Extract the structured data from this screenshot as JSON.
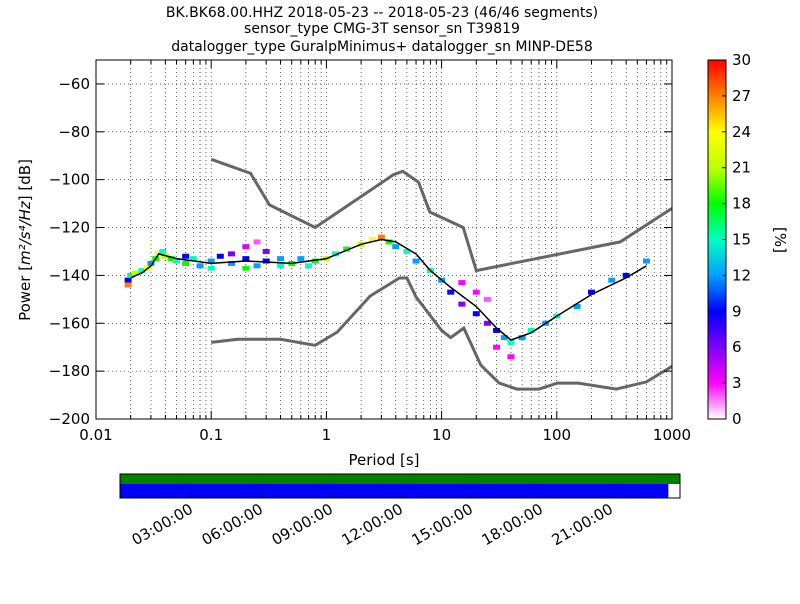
{
  "chart_data": {
    "type": "heatmap",
    "title_lines": [
      "BK.BK68.00.HHZ   2018-05-23 -- 2018-05-23  (46/46 segments)",
      "sensor_type CMG-3T sensor_sn T39819",
      "datalogger_type GuralpMinimus+ datalogger_sn MINP-DE58"
    ],
    "xlabel": "Period [s]",
    "ylabel_prefix": "Power [",
    "ylabel_unit": "m²/s⁴/Hz",
    "ylabel_suffix": "] [dB]",
    "xscale": "log",
    "xlim": [
      0.01,
      1000
    ],
    "ylim": [
      -200,
      -50
    ],
    "x_ticks": [
      0.01,
      0.1,
      1,
      10,
      100,
      1000
    ],
    "x_tick_labels": [
      "0.01",
      "0.1",
      "1",
      "10",
      "100",
      "1000"
    ],
    "y_ticks": [
      -200,
      -180,
      -160,
      -140,
      -120,
      -100,
      -80,
      -60
    ],
    "y_tick_labels": [
      "−200",
      "−180",
      "−160",
      "−140",
      "−120",
      "−100",
      "−80",
      "−60"
    ],
    "grid": "dotted",
    "colorbar": {
      "label": "[%]",
      "range": [
        0,
        30
      ],
      "ticks": [
        0,
        3,
        6,
        9,
        12,
        15,
        18,
        21,
        24,
        27,
        30
      ],
      "tick_labels": [
        "0",
        "3",
        "6",
        "9",
        "12",
        "15",
        "18",
        "21",
        "24",
        "27",
        "30"
      ],
      "colormap": [
        "#ffffff",
        "#ff00ff",
        "#8000ff",
        "#0000ff",
        "#00a0ff",
        "#00ffc0",
        "#00ff00",
        "#c0ff00",
        "#ffff00",
        "#ff8000",
        "#ff0000"
      ]
    },
    "model_color": "#666666",
    "high_noise_model": [
      [
        0.1,
        -91.5
      ],
      [
        0.22,
        -97.4
      ],
      [
        0.32,
        -110.5
      ],
      [
        0.8,
        -120
      ],
      [
        3.8,
        -98
      ],
      [
        4.6,
        -96.5
      ],
      [
        6.3,
        -101
      ],
      [
        7.9,
        -113.5
      ],
      [
        15.4,
        -120
      ],
      [
        20,
        -138
      ],
      [
        354.8,
        -126
      ],
      [
        1000,
        -112
      ]
    ],
    "low_noise_model": [
      [
        0.1,
        -168
      ],
      [
        0.17,
        -166.7
      ],
      [
        0.4,
        -166.7
      ],
      [
        0.8,
        -169.2
      ],
      [
        1.24,
        -163.7
      ],
      [
        2.4,
        -148.6
      ],
      [
        4.3,
        -141.1
      ],
      [
        5,
        -141.1
      ],
      [
        6,
        -149
      ],
      [
        10,
        -163
      ],
      [
        12,
        -166
      ],
      [
        15.6,
        -162
      ],
      [
        21.9,
        -177.5
      ],
      [
        31.6,
        -185
      ],
      [
        45,
        -187.5
      ],
      [
        70,
        -187.5
      ],
      [
        101,
        -185
      ],
      [
        154,
        -185
      ],
      [
        328,
        -187.5
      ],
      [
        600,
        -184.5
      ],
      [
        1000,
        -178
      ]
    ],
    "mode_line": [
      [
        0.02,
        -141
      ],
      [
        0.025,
        -139
      ],
      [
        0.03,
        -136
      ],
      [
        0.035,
        -131
      ],
      [
        0.05,
        -133
      ],
      [
        0.1,
        -135
      ],
      [
        0.2,
        -134
      ],
      [
        0.5,
        -135
      ],
      [
        1,
        -133
      ],
      [
        2,
        -127
      ],
      [
        3,
        -125
      ],
      [
        4,
        -126
      ],
      [
        6,
        -131
      ],
      [
        8,
        -138
      ],
      [
        12,
        -145
      ],
      [
        20,
        -153
      ],
      [
        30,
        -162
      ],
      [
        40,
        -167
      ],
      [
        60,
        -164
      ],
      [
        100,
        -157
      ],
      [
        200,
        -148
      ],
      [
        400,
        -141
      ],
      [
        600,
        -136
      ]
    ],
    "psd_density": [
      [
        0.019,
        -142,
        9
      ],
      [
        0.019,
        -144,
        27
      ],
      [
        0.02,
        -140,
        16
      ],
      [
        0.022,
        -139,
        21
      ],
      [
        0.025,
        -138,
        15
      ],
      [
        0.028,
        -137,
        24
      ],
      [
        0.03,
        -135,
        12
      ],
      [
        0.033,
        -133,
        18
      ],
      [
        0.035,
        -131,
        24
      ],
      [
        0.038,
        -130,
        15
      ],
      [
        0.04,
        -132,
        21
      ],
      [
        0.045,
        -133,
        18
      ],
      [
        0.05,
        -134,
        15
      ],
      [
        0.06,
        -132,
        9
      ],
      [
        0.06,
        -135,
        18
      ],
      [
        0.07,
        -133,
        15
      ],
      [
        0.08,
        -136,
        12
      ],
      [
        0.1,
        -134,
        12
      ],
      [
        0.1,
        -137,
        15
      ],
      [
        0.12,
        -132,
        9
      ],
      [
        0.15,
        -135,
        12
      ],
      [
        0.15,
        -131,
        6
      ],
      [
        0.2,
        -128,
        4
      ],
      [
        0.2,
        -133,
        9
      ],
      [
        0.2,
        -137,
        18
      ],
      [
        0.25,
        -126,
        2
      ],
      [
        0.25,
        -136,
        12
      ],
      [
        0.3,
        -134,
        9
      ],
      [
        0.3,
        -130,
        6
      ],
      [
        0.4,
        -136,
        15
      ],
      [
        0.4,
        -133,
        12
      ],
      [
        0.5,
        -135,
        18
      ],
      [
        0.6,
        -133,
        12
      ],
      [
        0.7,
        -136,
        15
      ],
      [
        0.8,
        -134,
        18
      ],
      [
        1,
        -133,
        21
      ],
      [
        1.2,
        -131,
        15
      ],
      [
        1.5,
        -129,
        18
      ],
      [
        2,
        -127,
        21
      ],
      [
        2.5,
        -125,
        24
      ],
      [
        3,
        -124,
        27
      ],
      [
        3.5,
        -126,
        18
      ],
      [
        4,
        -128,
        12
      ],
      [
        5,
        -130,
        15
      ],
      [
        6,
        -134,
        12
      ],
      [
        8,
        -138,
        15
      ],
      [
        10,
        -142,
        12
      ],
      [
        12,
        -147,
        9
      ],
      [
        15,
        -152,
        6
      ],
      [
        15,
        -143,
        3
      ],
      [
        20,
        -156,
        9
      ],
      [
        20,
        -147,
        3
      ],
      [
        25,
        -160,
        6
      ],
      [
        25,
        -150,
        2
      ],
      [
        30,
        -163,
        9
      ],
      [
        30,
        -170,
        3
      ],
      [
        35,
        -166,
        12
      ],
      [
        40,
        -168,
        15
      ],
      [
        40,
        -174,
        3
      ],
      [
        50,
        -166,
        12
      ],
      [
        60,
        -163,
        15
      ],
      [
        80,
        -160,
        12
      ],
      [
        100,
        -157,
        15
      ],
      [
        150,
        -153,
        12
      ],
      [
        200,
        -147,
        9
      ],
      [
        300,
        -142,
        12
      ],
      [
        400,
        -140,
        9
      ],
      [
        600,
        -134,
        12
      ]
    ],
    "timeline": {
      "tick_labels": [
        "03:00:00",
        "06:00:00",
        "09:00:00",
        "12:00:00",
        "15:00:00",
        "18:00:00",
        "21:00:00"
      ],
      "tick_hours": [
        3,
        6,
        9,
        12,
        15,
        18,
        21
      ],
      "range_hours": [
        0,
        24
      ],
      "top_bar": {
        "color": "#008000",
        "start_h": 0,
        "end_h": 24
      },
      "bottom_bar": {
        "color": "#0000ff",
        "start_h": 0,
        "end_h": 23.5
      }
    }
  }
}
